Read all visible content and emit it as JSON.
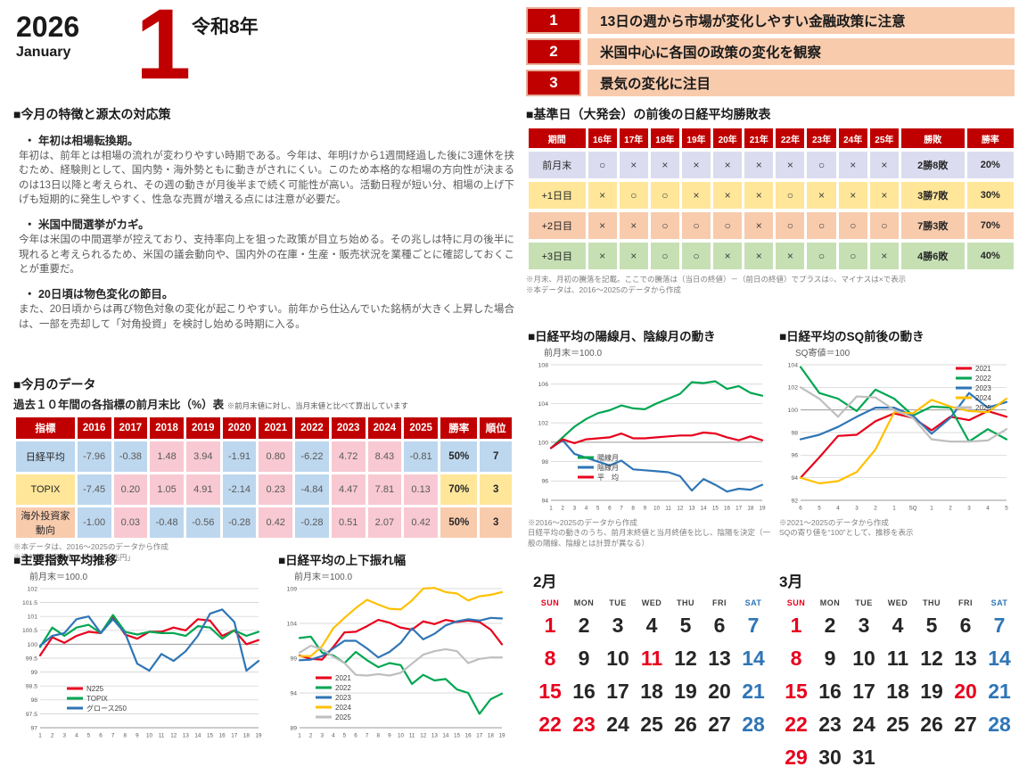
{
  "page": {
    "year": "2026",
    "month_en": "January",
    "month_big": "1",
    "era": "令和8年"
  },
  "highlights": [
    {
      "num": "1",
      "text": "13日の週から市場が変化しやすい金融政策に注意"
    },
    {
      "num": "2",
      "text": "米国中心に各国の政策の変化を観察"
    },
    {
      "num": "3",
      "text": "景気の変化に注目"
    }
  ],
  "features": {
    "title": "■今月の特徴と源太の対応策",
    "items": [
      {
        "head": "・ 年初は相場転換期。",
        "body": "年初は、前年とは相場の流れが変わりやすい時期である。今年は、年明けから1週間経過した後に3連休を挟むため、経験則として、国内勢・海外勢ともに動きがされにくい。このため本格的な相場の方向性が決まるのは13日以降と考えられ、その週の動きが月後半まで続く可能性が高い。活動日程が短い分、相場の上げ下げも短期的に発生しやすく、性急な売買が増える点には注意が必要だ。"
      },
      {
        "head": "・ 米国中間選挙がカギ。",
        "body": "今年は米国の中間選挙が控えており、支持率向上を狙った政策が目立ち始める。その兆しは特に月の後半に現れると考えられるため、米国の議会動向や、国内外の在庫・生産・販売状況を業種ごとに確認しておくことが重要だ。"
      },
      {
        "head": "・ 20日頃は物色変化の節目。",
        "body": "また、20日頃からは再び物色対象の変化が起こりやすい。前年から仕込んでいた銘柄が大きく上昇した場合は、一部を売却して「対角投資」を検討し始める時期に入る。"
      }
    ]
  },
  "data_section": {
    "title": "■今月のデータ",
    "subtitle": "過去１０年間の各指標の前月末比（%）表",
    "subtitle_note": "※前月末値に対し、当月末値と比べて算出しています",
    "columns": [
      "指標",
      "2016",
      "2017",
      "2018",
      "2019",
      "2020",
      "2021",
      "2022",
      "2023",
      "2024",
      "2025",
      "勝率",
      "順位"
    ],
    "rows": [
      {
        "label": "日経平均",
        "color": "#bdd7ee",
        "values": [
          "-7.96",
          "-0.38",
          "1.48",
          "3.94",
          "-1.91",
          "0.80",
          "-6.22",
          "4.72",
          "8.43",
          "-0.81"
        ],
        "rate": "50%",
        "rank": "7"
      },
      {
        "label": "TOPIX",
        "color": "#ffe699",
        "values": [
          "-7.45",
          "0.20",
          "1.05",
          "4.91",
          "-2.14",
          "0.23",
          "-4.84",
          "4.47",
          "7.81",
          "0.13"
        ],
        "rate": "70%",
        "rank": "3"
      },
      {
        "label": "海外投資家動向",
        "color": "#f8cbad",
        "values": [
          "-1.00",
          "0.03",
          "-0.48",
          "-0.56",
          "-0.28",
          "0.42",
          "-0.28",
          "0.51",
          "2.07",
          "0.42"
        ],
        "rate": "50%",
        "rank": "3"
      }
    ],
    "cell_colors": {
      "positive": "#f8c9d2",
      "negative": "#bdd7ee"
    },
    "notes": [
      "※本データは、2016～2025のデータから作成",
      "※海外投資家動向の単位は「兆円」"
    ]
  },
  "winloss_section": {
    "title": "■基準日（大発会）の前後の日経平均勝敗表",
    "columns": [
      "期間",
      "16年",
      "17年",
      "18年",
      "19年",
      "20年",
      "21年",
      "22年",
      "23年",
      "24年",
      "25年",
      "勝敗",
      "勝率"
    ],
    "rows": [
      {
        "label": "前月末",
        "color": "#dcdcf0",
        "marks": [
          "○",
          "×",
          "×",
          "×",
          "×",
          "×",
          "×",
          "○",
          "×",
          "×"
        ],
        "record": "2勝8敗",
        "rate": "20%"
      },
      {
        "label": "+1日目",
        "color": "#ffe699",
        "marks": [
          "×",
          "○",
          "○",
          "×",
          "×",
          "×",
          "○",
          "×",
          "×",
          "×"
        ],
        "record": "3勝7敗",
        "rate": "30%"
      },
      {
        "label": "+2日目",
        "color": "#f8cbad",
        "marks": [
          "×",
          "×",
          "○",
          "○",
          "○",
          "×",
          "○",
          "○",
          "○",
          "○"
        ],
        "record": "7勝3敗",
        "rate": "70%"
      },
      {
        "label": "+3日目",
        "color": "#c6e0b4",
        "marks": [
          "×",
          "×",
          "○",
          "○",
          "×",
          "×",
          "×",
          "○",
          "○",
          "×"
        ],
        "record": "4勝6敗",
        "rate": "40%"
      }
    ],
    "notes": [
      "※月末、月初の騰落を記載。ここでの騰落は（当日の終値）－（前日の終値）でプラスは○、マイナスは×で表示",
      "※本データは、2016～2025のデータから作成"
    ]
  },
  "chart_data": [
    {
      "id": "indices",
      "type": "line",
      "title": "■主要指数平均推移",
      "subtitle": "前月末＝100.0",
      "x_labels": [
        "1",
        "2",
        "3",
        "4",
        "5",
        "6",
        "7",
        "8",
        "9",
        "10",
        "11",
        "12",
        "13",
        "14",
        "15",
        "16",
        "17",
        "18",
        "19"
      ],
      "ylim": [
        97,
        102
      ],
      "yticks": [
        97,
        97.5,
        98,
        98.5,
        99,
        99.5,
        100,
        100.5,
        101,
        101.5,
        102
      ],
      "legend_position": "bottom-left",
      "series": [
        {
          "name": "N225",
          "color": "#e8001c",
          "values": [
            99.6,
            100.25,
            100.05,
            100.3,
            100.45,
            100.4,
            101.0,
            100.35,
            100.2,
            100.45,
            100.45,
            100.6,
            100.5,
            100.9,
            100.85,
            100.3,
            100.5,
            100.0,
            100.15
          ]
        },
        {
          "name": "TOPIX",
          "color": "#00a651",
          "values": [
            99.9,
            100.6,
            100.3,
            100.6,
            100.7,
            100.4,
            101.05,
            100.45,
            100.35,
            100.45,
            100.4,
            100.4,
            100.3,
            100.65,
            100.6,
            100.2,
            100.5,
            100.3,
            100.45
          ]
        },
        {
          "name": "グロース250",
          "color": "#2e75b6",
          "values": [
            99.95,
            100.3,
            100.4,
            100.9,
            101.0,
            100.4,
            100.9,
            100.4,
            99.3,
            99.05,
            99.65,
            99.4,
            99.75,
            100.3,
            101.1,
            101.25,
            100.8,
            99.05,
            99.4
          ]
        }
      ],
      "notes": []
    },
    {
      "id": "range",
      "type": "line",
      "title": "■日経平均の上下振れ幅",
      "subtitle": "前月末＝100.0",
      "x_labels": [
        "1",
        "2",
        "3",
        "4",
        "5",
        "6",
        "7",
        "8",
        "9",
        "10",
        "11",
        "12",
        "13",
        "14",
        "15",
        "16",
        "17",
        "18",
        "19"
      ],
      "ylim": [
        89,
        109
      ],
      "yticks": [
        89,
        94,
        99,
        104,
        109
      ],
      "legend_position": "bottom-left",
      "series": [
        {
          "name": "2021",
          "color": "#e8001c",
          "values": [
            99.4,
            98.9,
            98.8,
            100.6,
            102.7,
            102.8,
            103.6,
            104.5,
            104.1,
            103.4,
            103.1,
            104.3,
            103.9,
            104.5,
            104.2,
            104.4,
            104.2,
            103.1,
            101.0
          ]
        },
        {
          "name": "2022",
          "color": "#00a651",
          "values": [
            101.9,
            102.1,
            99.8,
            99.4,
            98.3,
            99.9,
            98.7,
            97.7,
            98.3,
            98.0,
            95.3,
            96.6,
            95.8,
            96.0,
            94.5,
            94.0,
            91.0,
            93.1,
            93.9
          ]
        },
        {
          "name": "2023",
          "color": "#2e75b6",
          "values": [
            98.7,
            98.8,
            99.3,
            100.4,
            101.5,
            101.5,
            100.4,
            99.1,
            99.9,
            101.2,
            103.3,
            101.7,
            102.5,
            103.7,
            104.3,
            104.6,
            104.4,
            104.8,
            104.7
          ]
        },
        {
          "name": "2024",
          "color": "#ffc000",
          "values": [
            99.3,
            99.3,
            100.7,
            103.3,
            104.8,
            106.2,
            107.4,
            106.7,
            106.1,
            106.0,
            107.3,
            109.0,
            109.1,
            108.5,
            108.3,
            107.3,
            107.9,
            108.1,
            108.5
          ]
        },
        {
          "name": "2025",
          "color": "#bfbfbf",
          "values": [
            99.8,
            100.8,
            100.3,
            99.2,
            98.3,
            96.6,
            96.5,
            96.7,
            96.5,
            96.9,
            98.2,
            99.5,
            100.0,
            100.3,
            100.0,
            98.3,
            98.9,
            99.1,
            99.1
          ]
        }
      ],
      "notes": []
    },
    {
      "id": "candle_months",
      "type": "line",
      "title": "■日経平均の陽線月、陰線月の動き",
      "subtitle": "前月末＝100.0",
      "x_labels": [
        "1",
        "2",
        "3",
        "4",
        "5",
        "6",
        "7",
        "8",
        "9",
        "10",
        "11",
        "12",
        "13",
        "14",
        "15",
        "16",
        "17",
        "18",
        "19"
      ],
      "ylim": [
        94,
        108
      ],
      "yticks": [
        94,
        96,
        98,
        100,
        102,
        104,
        106,
        108
      ],
      "legend_position": "middle-left",
      "series": [
        {
          "name": "陽線月",
          "color": "#00a651",
          "values": [
            99.4,
            100.5,
            101.6,
            102.4,
            103.0,
            103.3,
            103.8,
            103.5,
            103.4,
            104.0,
            104.5,
            105.0,
            106.2,
            106.1,
            106.3,
            105.5,
            105.8,
            105.1,
            104.8
          ]
        },
        {
          "name": "陰線月",
          "color": "#2e75b6",
          "values": [
            99.4,
            100.2,
            98.8,
            98.4,
            98.0,
            97.6,
            98.1,
            97.2,
            97.1,
            97.0,
            96.9,
            96.5,
            95.0,
            96.2,
            95.6,
            94.9,
            95.2,
            95.1,
            95.6
          ]
        },
        {
          "name": "平　均",
          "color": "#e8001c",
          "values": [
            99.4,
            100.3,
            99.9,
            100.3,
            100.4,
            100.5,
            100.9,
            100.4,
            100.4,
            100.5,
            100.6,
            100.7,
            100.7,
            101.0,
            100.9,
            100.5,
            100.2,
            100.6,
            100.2
          ]
        }
      ],
      "notes": [
        "※2016～2025のデータから作成",
        "日経平均の動きのうち、前月末終値と当月終値を比し、陰陽を決定（一般の陽線、陰線とは計算が異なる）"
      ]
    },
    {
      "id": "sq",
      "type": "line",
      "title": "■日経平均のSQ前後の動き",
      "subtitle": "SQ寄値＝100",
      "x_labels": [
        "6",
        "5",
        "4",
        "3",
        "2",
        "1",
        "SQ",
        "1",
        "2",
        "3",
        "4",
        "5"
      ],
      "ylim": [
        92,
        104
      ],
      "yticks": [
        92,
        94,
        96,
        98,
        100,
        102,
        104
      ],
      "legend_position": "top-right",
      "series": [
        {
          "name": "2021",
          "color": "#e8001c",
          "values": [
            94.0,
            95.8,
            97.7,
            97.8,
            99.0,
            99.7,
            99.3,
            98.2,
            99.4,
            99.1,
            99.9,
            99.4
          ]
        },
        {
          "name": "2022",
          "color": "#00a651",
          "values": [
            103.8,
            101.5,
            101.0,
            99.9,
            101.8,
            101.0,
            99.5,
            100.3,
            100.2,
            97.2,
            98.3,
            97.4
          ]
        },
        {
          "name": "2023",
          "color": "#2e75b6",
          "values": [
            97.4,
            97.8,
            98.5,
            99.4,
            100.2,
            100.2,
            99.5,
            97.9,
            99.3,
            101.5,
            100.2,
            100.7
          ]
        },
        {
          "name": "2024",
          "color": "#ffc000",
          "values": [
            94.0,
            93.5,
            93.7,
            94.5,
            96.5,
            99.8,
            99.7,
            100.9,
            100.3,
            99.9,
            99.8,
            101.0
          ]
        },
        {
          "name": "2025",
          "color": "#bfbfbf",
          "values": [
            102.0,
            101.0,
            99.4,
            101.2,
            101.1,
            100.0,
            99.3,
            97.4,
            97.2,
            97.2,
            97.3,
            98.3
          ]
        }
      ],
      "notes": [
        "※2021～2025のデータから作成",
        "SQの寄り値を“100”として、推移を表示"
      ]
    }
  ],
  "calendars": {
    "dow": [
      "SUN",
      "MON",
      "TUE",
      "WED",
      "THU",
      "FRI",
      "SAT"
    ],
    "months": [
      {
        "title": "2月",
        "weeks": [
          [
            1,
            2,
            3,
            4,
            5,
            6,
            7
          ],
          [
            8,
            9,
            10,
            11,
            12,
            13,
            14
          ],
          [
            15,
            16,
            17,
            18,
            19,
            20,
            21
          ],
          [
            22,
            23,
            24,
            25,
            26,
            27,
            28
          ]
        ],
        "red_days": [
          1,
          8,
          11,
          15,
          22,
          23
        ],
        "blue_days": [
          7,
          14,
          21,
          28
        ]
      },
      {
        "title": "3月",
        "weeks": [
          [
            1,
            2,
            3,
            4,
            5,
            6,
            7
          ],
          [
            8,
            9,
            10,
            11,
            12,
            13,
            14
          ],
          [
            15,
            16,
            17,
            18,
            19,
            20,
            21
          ],
          [
            22,
            23,
            24,
            25,
            26,
            27,
            28
          ],
          [
            29,
            30,
            31
          ]
        ],
        "red_days": [
          1,
          8,
          15,
          20,
          22,
          29
        ],
        "blue_days": [
          7,
          14,
          21,
          28
        ]
      }
    ]
  }
}
